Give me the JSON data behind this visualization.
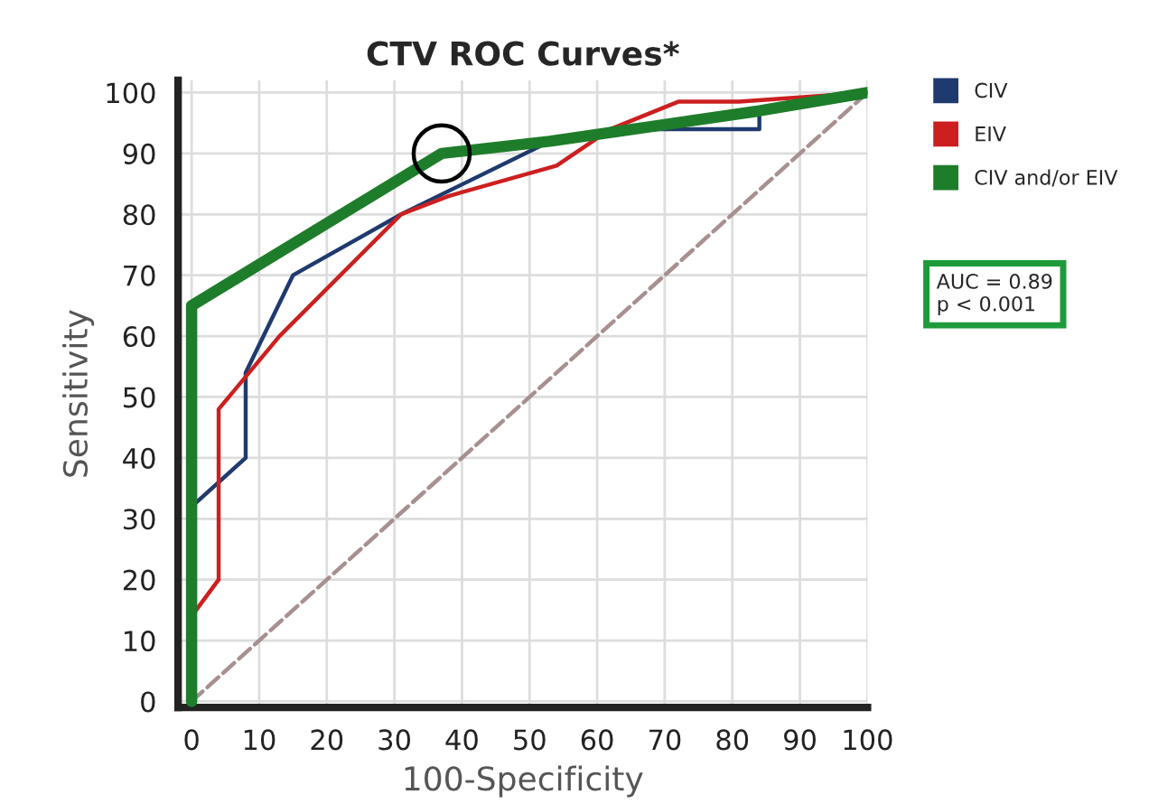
{
  "chart_data": {
    "type": "line",
    "title": "CTV ROC Curves*",
    "xlabel": "100-Specificity",
    "ylabel": "Sensitivity",
    "xlim": [
      -2,
      100
    ],
    "ylim": [
      -1,
      102
    ],
    "xticks": [
      0,
      10,
      20,
      30,
      40,
      50,
      60,
      70,
      80,
      90,
      100
    ],
    "yticks": [
      0,
      10,
      20,
      30,
      40,
      50,
      60,
      70,
      80,
      90,
      100
    ],
    "grid": true,
    "legend": "top right",
    "marker": "none",
    "line_style": "solid",
    "annotations": [
      "AUC = 0.89\np < 0.001"
    ],
    "series": [
      {
        "color": "#a89090",
        "line_style": "dashed",
        "x": [
          0,
          100
        ],
        "values": [
          0,
          100
        ]
      },
      {
        "name": "CIV",
        "color": "#1f3a6e",
        "x": [
          0,
          0,
          8,
          8,
          15,
          31,
          53,
          62,
          84,
          84,
          100
        ],
        "values": [
          0,
          32,
          40,
          54,
          70,
          80,
          92,
          94,
          94,
          97,
          100
        ]
      },
      {
        "name": "EIV",
        "color": "#cc1f1f",
        "x": [
          0,
          0,
          4,
          4,
          13,
          31,
          38,
          54,
          62,
          72,
          81,
          100
        ],
        "values": [
          0,
          14,
          20,
          48,
          60,
          80,
          83,
          88,
          94,
          98.5,
          98.5,
          100
        ]
      },
      {
        "name": "CIV and/or EIV",
        "color": "#1e7d2a",
        "x": [
          0,
          0,
          37,
          53,
          84,
          100
        ],
        "values": [
          0,
          65,
          90,
          92,
          97,
          100
        ]
      },
      {
        "type": "scatter",
        "color": "#000000",
        "marker": "circle",
        "x": [
          37
        ],
        "values": [
          90
        ]
      }
    ]
  }
}
